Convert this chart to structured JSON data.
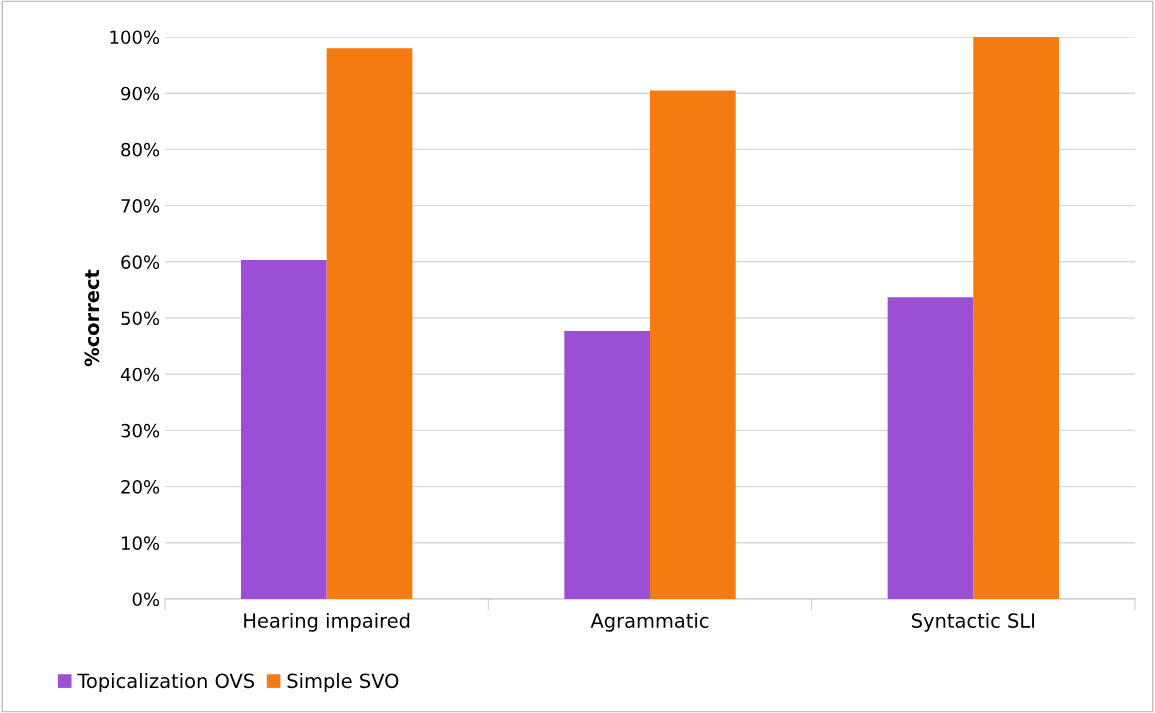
{
  "chart_data": {
    "type": "bar",
    "ylabel": "%correct",
    "categories": [
      "Hearing impaired",
      "Agrammatic",
      "Syntactic SLI"
    ],
    "series": [
      {
        "name": "Topicalization OVS",
        "color": "#9a4fd4",
        "values": [
          60.3,
          47.7,
          53.7
        ]
      },
      {
        "name": "Simple SVO",
        "color": "#f47a12",
        "values": [
          98,
          90.5,
          100
        ]
      }
    ],
    "ylim": [
      0,
      100
    ],
    "yticks": [
      {
        "value": 0,
        "label": "0%"
      },
      {
        "value": 10,
        "label": "10%"
      },
      {
        "value": 20,
        "label": "20%"
      },
      {
        "value": 30,
        "label": "30%"
      },
      {
        "value": 40,
        "label": "40%"
      },
      {
        "value": 50,
        "label": "50%"
      },
      {
        "value": 60,
        "label": "60%"
      },
      {
        "value": 70,
        "label": "70%"
      },
      {
        "value": 80,
        "label": "80%"
      },
      {
        "value": 90,
        "label": "90%"
      },
      {
        "value": 100,
        "label": "100%"
      }
    ],
    "grid": "y",
    "legend": "bottom left"
  }
}
